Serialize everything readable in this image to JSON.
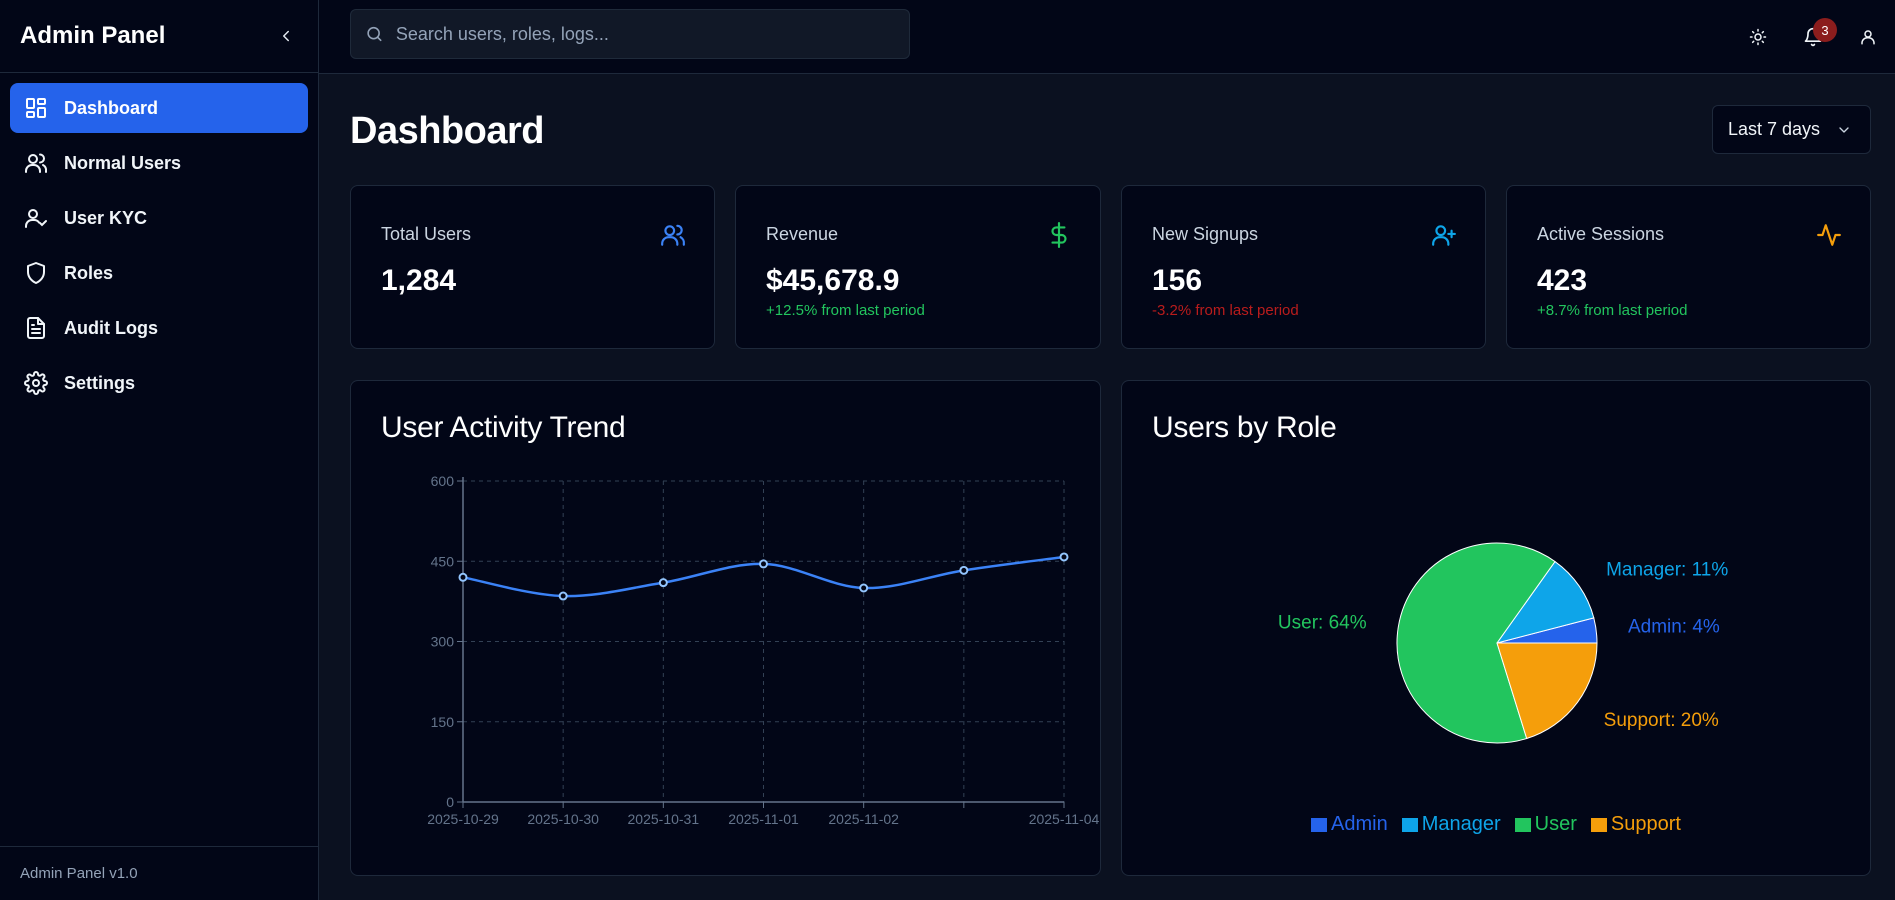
{
  "sidebar": {
    "brand": "Admin Panel",
    "items": [
      {
        "label": "Dashboard",
        "icon": "dashboard-icon"
      },
      {
        "label": "Normal Users",
        "icon": "users-icon"
      },
      {
        "label": "User KYC",
        "icon": "user-check-icon"
      },
      {
        "label": "Roles",
        "icon": "shield-icon"
      },
      {
        "label": "Audit Logs",
        "icon": "file-text-icon"
      },
      {
        "label": "Settings",
        "icon": "gear-icon"
      }
    ],
    "active_index": 0,
    "footer": "Admin Panel v1.0"
  },
  "topbar": {
    "search_placeholder": "Search users, roles, logs...",
    "notification_count": "3"
  },
  "main": {
    "title": "Dashboard",
    "range_select": "Last 7 days",
    "stats": [
      {
        "label": "Total Users",
        "value": "1,284",
        "delta": "",
        "trend": "none",
        "icon": "users-icon",
        "color": "#3b82f6"
      },
      {
        "label": "Revenue",
        "value": "$45,678.9",
        "delta": "+12.5% from last period",
        "trend": "up",
        "icon": "dollar-icon",
        "color": "#22c55e"
      },
      {
        "label": "New Signups",
        "value": "156",
        "delta": "-3.2% from last period",
        "trend": "down",
        "icon": "user-plus-icon",
        "color": "#0ea5e9"
      },
      {
        "label": "Active Sessions",
        "value": "423",
        "delta": "+8.7% from last period",
        "trend": "up",
        "icon": "activity-icon",
        "color": "#f59e0b"
      }
    ]
  },
  "chart_data": [
    {
      "type": "line",
      "title": "User Activity Trend",
      "x": [
        "2025-10-29",
        "2025-10-30",
        "2025-10-31",
        "2025-11-01",
        "2025-11-02",
        "2025-11-03",
        "2025-11-04"
      ],
      "x_tick_labels": [
        "2025-10-29",
        "2025-10-30",
        "2025-10-31",
        "2025-11-01",
        "2025-11-02",
        "",
        "2025-11-04"
      ],
      "series": [
        {
          "values": [
            420,
            385,
            410,
            445,
            400,
            433,
            458
          ],
          "color": "#3b82f6"
        }
      ],
      "ylim": [
        0,
        600
      ],
      "yticks": [
        0,
        150,
        300,
        450,
        600
      ],
      "grid": true
    },
    {
      "type": "pie",
      "title": "Users by Role",
      "slices": [
        {
          "label": "Admin",
          "value": 4,
          "text": "Admin: 4%",
          "color": "#2563eb"
        },
        {
          "label": "Manager",
          "value": 11,
          "text": "Manager: 11%",
          "color": "#0ea5e9"
        },
        {
          "label": "User",
          "value": 64,
          "text": "User: 64%",
          "color": "#22c55e"
        },
        {
          "label": "Support",
          "value": 20,
          "text": "Support: 20%",
          "color": "#f59e0b"
        }
      ],
      "legend": "bottom"
    }
  ]
}
